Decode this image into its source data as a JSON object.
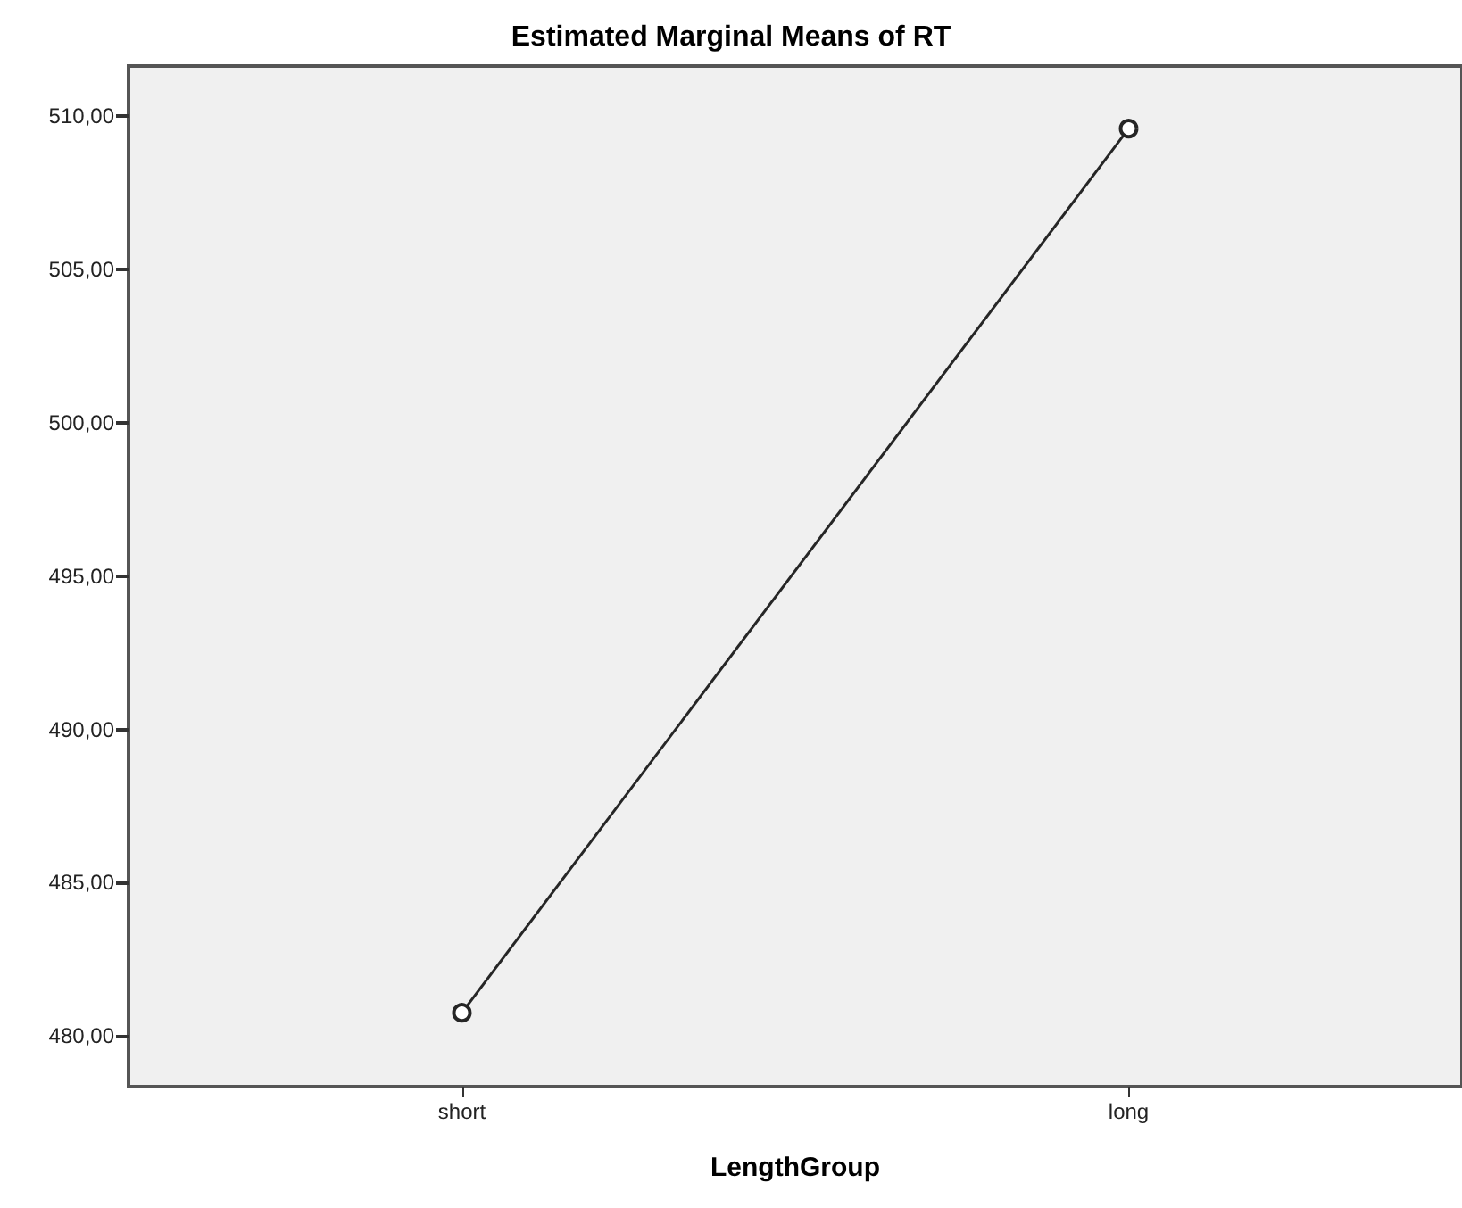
{
  "chart_data": {
    "type": "line",
    "title": "Estimated Marginal Means of RT",
    "xlabel": "LengthGroup",
    "categories": [
      "short",
      "long"
    ],
    "series": [
      {
        "color": "#262626",
        "values": [
          480.76,
          509.59
        ]
      }
    ],
    "ylim": [
      478.35,
      511.63
    ],
    "yticks": [
      {
        "value": 480,
        "label": "480,00"
      },
      {
        "value": 485,
        "label": "485,00"
      },
      {
        "value": 490,
        "label": "490,00"
      },
      {
        "value": 495,
        "label": "495,00"
      },
      {
        "value": 500,
        "label": "500,00"
      },
      {
        "value": 505,
        "label": "505,00"
      },
      {
        "value": 510,
        "label": "510,00"
      }
    ],
    "grid": false,
    "marker": "circle",
    "line_style": "solid"
  }
}
